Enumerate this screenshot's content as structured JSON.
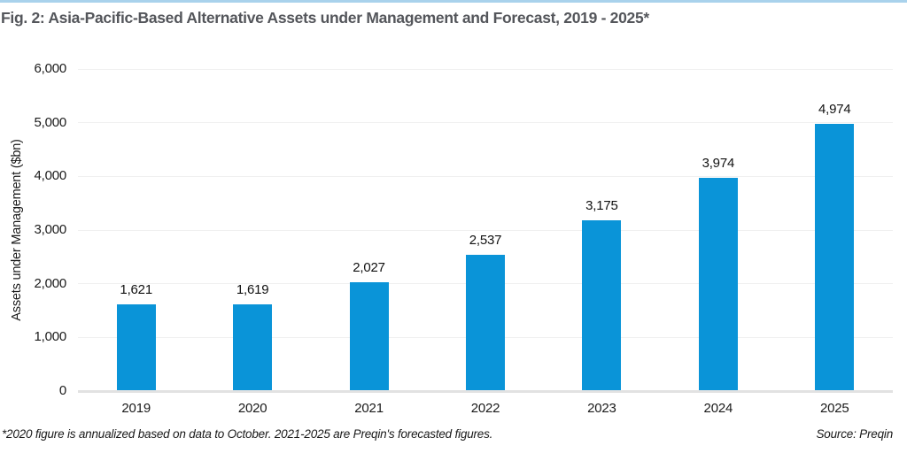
{
  "chart_data": {
    "type": "bar",
    "title": "Fig. 2: Asia-Pacific-Based Alternative Assets under Management and Forecast, 2019 - 2025*",
    "categories": [
      "2019",
      "2020",
      "2021",
      "2022",
      "2023",
      "2024",
      "2025"
    ],
    "values": [
      1621,
      1619,
      2027,
      2537,
      3175,
      3974,
      4974
    ],
    "value_labels": [
      "1,621",
      "1,619",
      "2,027",
      "2,537",
      "3,175",
      "3,974",
      "4,974"
    ],
    "xlabel": "",
    "ylabel": "Assets under Management ($bn)",
    "ylim": [
      0,
      6000
    ],
    "ytick_interval": 1000,
    "ytick_labels": [
      "0",
      "1,000",
      "2,000",
      "3,000",
      "4,000",
      "5,000",
      "6,000"
    ],
    "grid": true,
    "legend": false,
    "bar_color": "#0a94d8"
  },
  "footer": {
    "note": "*2020 figure is annualized based on data to October. 2021-2025 are Preqin's forecasted figures.",
    "source": "Source: Preqin"
  },
  "colors": {
    "accent_line": "#a9d2ec",
    "bar": "#0a94d8",
    "title_text": "#54565b",
    "gridline": "#f0f0f0",
    "baseline": "#e2e2e2"
  }
}
